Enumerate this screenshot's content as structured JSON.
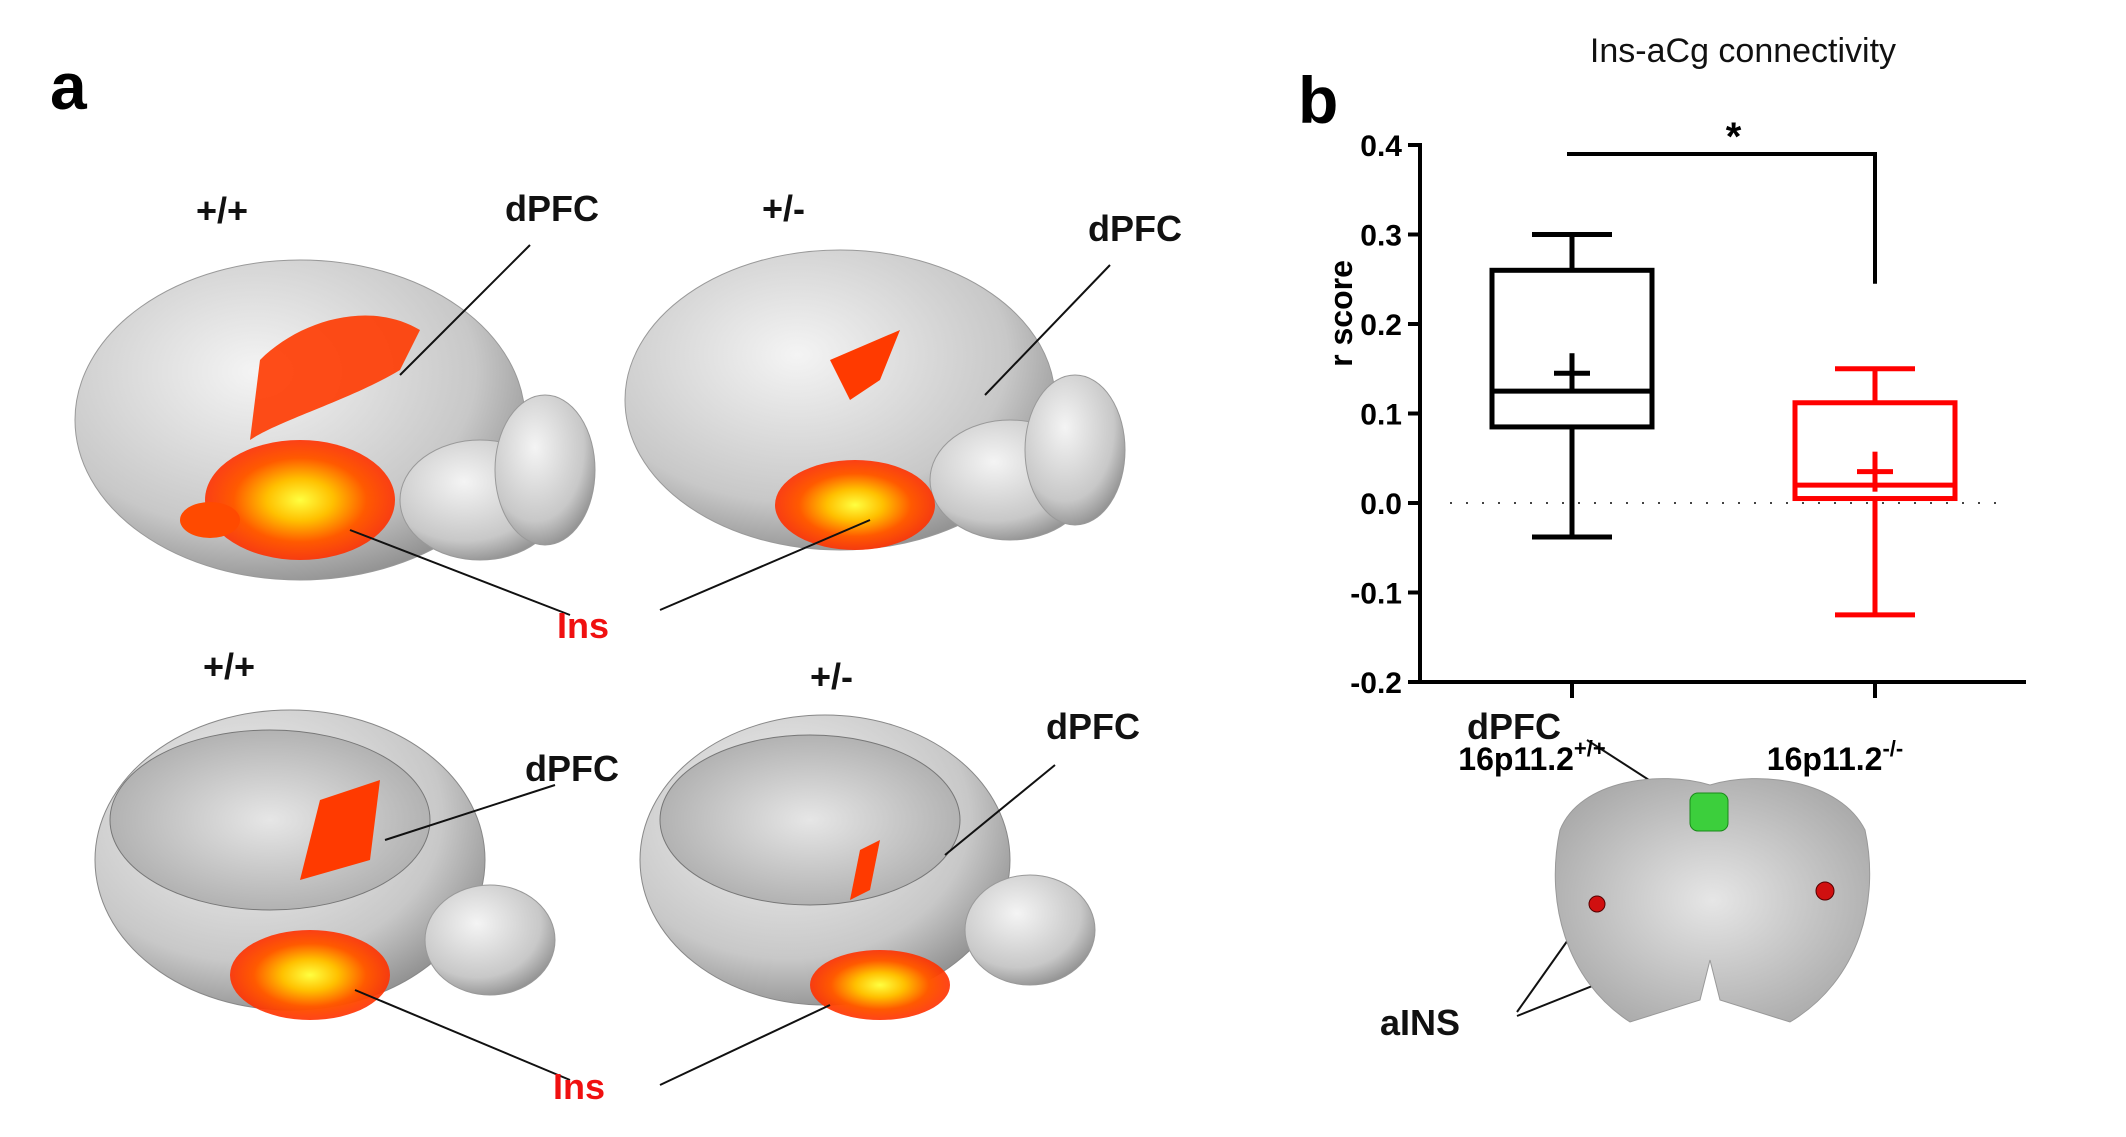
{
  "panel_a": {
    "letter": "a",
    "images": [
      {
        "genotype": "+/+",
        "region_top": "dPFC",
        "view": "dorsal-lateral surface"
      },
      {
        "genotype": "+/-",
        "region_top": "dPFC",
        "view": "dorsal-lateral surface"
      },
      {
        "genotype": "+/+",
        "region_top": "dPFC",
        "view": "cut section"
      },
      {
        "genotype": "+/-",
        "region_top": "dPFC",
        "view": "cut section"
      }
    ],
    "ins_label": "Ins",
    "colors": {
      "activation_hot": "#ff3a00",
      "activation_peak": "#ffff30",
      "ins_label": "#f01010"
    }
  },
  "panel_b": {
    "letter": "b",
    "seed_map": {
      "dpfc_label": "dPFC",
      "ains_label": "aINS",
      "colors": {
        "dpfc": "#3ccf3c",
        "ains": "#d01010"
      }
    }
  },
  "chart_data": {
    "type": "box",
    "title": "Ins-aCg connectivity",
    "ylabel": "r score",
    "xlabel": "",
    "ylim": [
      -0.2,
      0.4
    ],
    "yticks": [
      "-0.2",
      "-0.1",
      "0.0",
      "0.1",
      "0.2",
      "0.3",
      "0.4"
    ],
    "reference_line": 0.0,
    "categories": [
      {
        "base": "16p11.2",
        "sup": "+/+"
      },
      {
        "base": "16p11.2",
        "sup": "-/-"
      }
    ],
    "series": [
      {
        "color": "#000000",
        "min": -0.038,
        "q1": 0.085,
        "median": 0.125,
        "mean": 0.145,
        "q3": 0.26,
        "max": 0.3
      },
      {
        "color": "#ff0000",
        "min": -0.125,
        "q1": 0.005,
        "median": 0.02,
        "mean": 0.035,
        "q3": 0.112,
        "max": 0.15
      }
    ],
    "significance": {
      "label": "*",
      "between": [
        0,
        1
      ]
    }
  }
}
